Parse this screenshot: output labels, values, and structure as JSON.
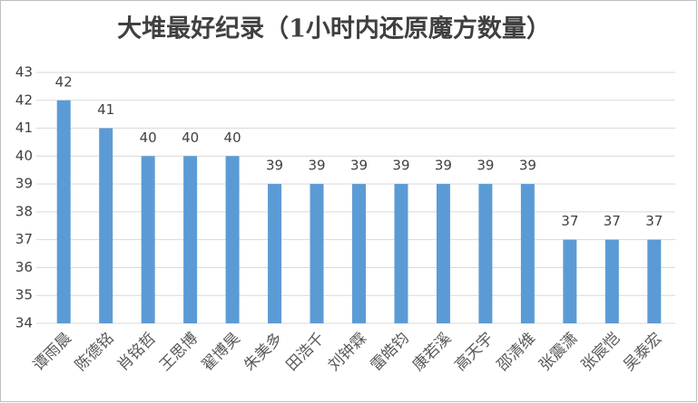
{
  "chart_data": {
    "type": "bar",
    "title": "大堆最好纪录（1小时内还原魔方数量）",
    "categories": [
      "谭雨晨",
      "陈德铭",
      "肖铭哲",
      "王思博",
      "翟博昊",
      "朱美多",
      "田浩千",
      "刘钟霖",
      "雷皓钧",
      "康若溪",
      "高天宇",
      "邵清维",
      "张震潇",
      "张宸恺",
      "吴泰宏"
    ],
    "values": [
      42,
      41,
      40,
      40,
      40,
      39,
      39,
      39,
      39,
      39,
      39,
      39,
      37,
      37,
      37
    ],
    "color": "#5b9bd5",
    "ylim": [
      34,
      43
    ],
    "yticks": [
      34,
      35,
      36,
      37,
      38,
      39,
      40,
      41,
      42,
      43
    ],
    "grid": true
  }
}
